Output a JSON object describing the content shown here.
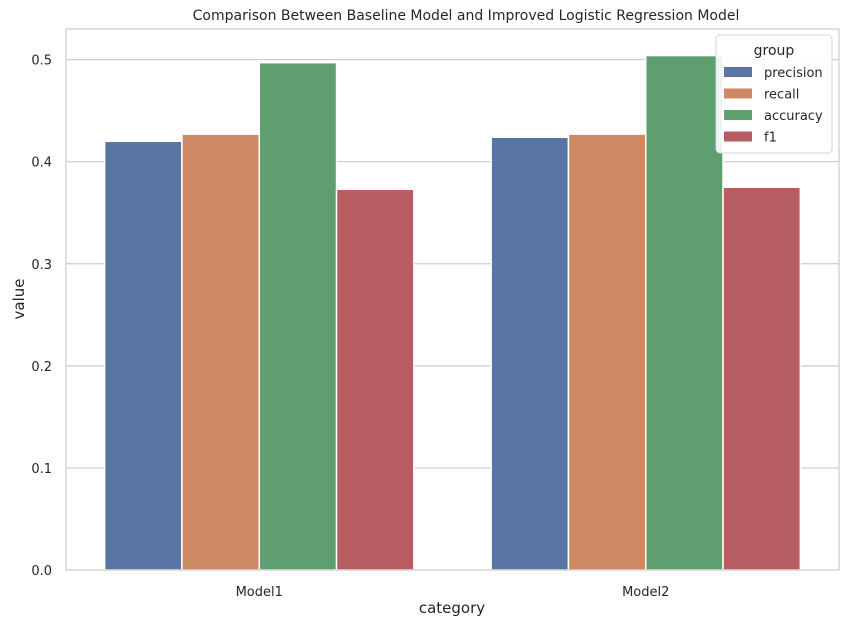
{
  "chart_data": {
    "type": "bar",
    "title": "Comparison Between Baseline Model and Improved Logistic Regression Model",
    "xlabel": "category",
    "ylabel": "value",
    "categories": [
      "Model1",
      "Model2"
    ],
    "series": [
      {
        "name": "precision",
        "color": "#5975a4",
        "values": [
          0.42,
          0.424
        ]
      },
      {
        "name": "recall",
        "color": "#cc8963",
        "values": [
          0.427,
          0.427
        ]
      },
      {
        "name": "accuracy",
        "color": "#5f9e6e",
        "values": [
          0.497,
          0.504
        ]
      },
      {
        "name": "f1",
        "color": "#b55d60",
        "values": [
          0.373,
          0.375
        ]
      }
    ],
    "ylim": [
      0,
      0.53
    ],
    "yticks": [
      0.0,
      0.1,
      0.2,
      0.3,
      0.4,
      0.5
    ],
    "ytick_labels": [
      "0.0",
      "0.1",
      "0.2",
      "0.3",
      "0.4",
      "0.5"
    ],
    "grid": "horizontal",
    "legend": {
      "title": "group",
      "placement": "top-right"
    }
  }
}
